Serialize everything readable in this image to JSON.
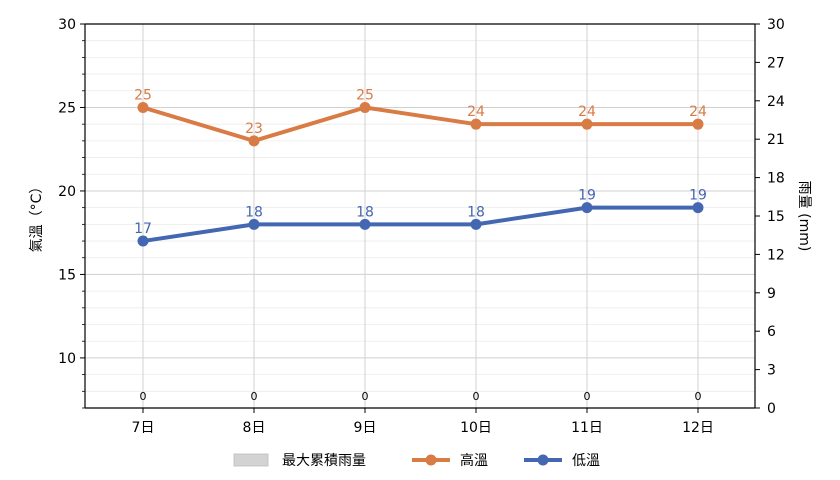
{
  "chart_data": {
    "type": "line",
    "categories": [
      "7日",
      "8日",
      "9日",
      "10日",
      "11日",
      "12日"
    ],
    "series": [
      {
        "name": "高溫",
        "axis": "left",
        "color": "#d97b45",
        "values": [
          25,
          23,
          25,
          24,
          24,
          24
        ]
      },
      {
        "name": "低溫",
        "axis": "left",
        "color": "#4467b2",
        "values": [
          17,
          18,
          18,
          18,
          19,
          19
        ]
      },
      {
        "name": "最大累積雨量",
        "axis": "right",
        "type": "bar",
        "color": "#d3d3d3",
        "values": [
          0,
          0,
          0,
          0,
          0,
          0
        ]
      }
    ],
    "ylabel": "氣溫（°C）",
    "ylabel_right": "雨量 (mm)",
    "ylim": [
      7,
      30
    ],
    "yticks": [
      10,
      15,
      20,
      25,
      30
    ],
    "ylim_right": [
      0,
      30
    ],
    "yticks_right": [
      0,
      3,
      6,
      9,
      12,
      15,
      18,
      21,
      24,
      27,
      30
    ],
    "grid": true,
    "legend_position": "bottom-center",
    "legend_order": [
      "最大累積雨量",
      "高溫",
      "低溫"
    ]
  }
}
